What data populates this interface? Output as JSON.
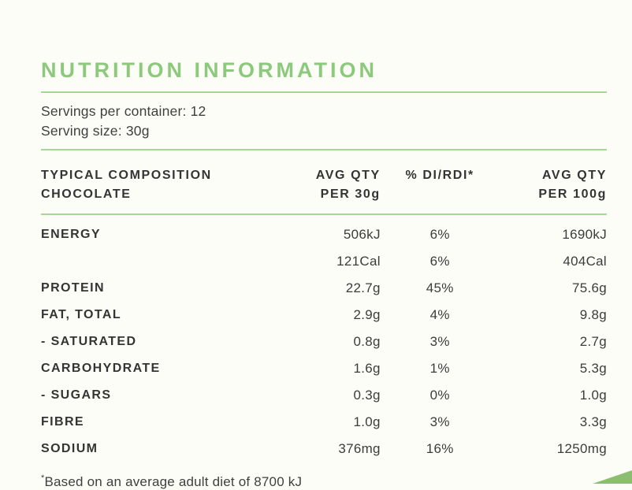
{
  "title": "NUTRITION INFORMATION",
  "serving_info": {
    "servings_per_container": "Servings per container: 12",
    "serving_size": "Serving size: 30g"
  },
  "table": {
    "headers": {
      "col1_line1": "TYPICAL COMPOSITION",
      "col1_line2": "CHOCOLATE",
      "col2_line1": "AVG QTY",
      "col2_line2": "PER 30g",
      "col3": "% DI/RDI*",
      "col4_line1": "AVG QTY",
      "col4_line2": "PER 100g"
    },
    "rows": [
      {
        "label": "ENERGY",
        "qty_30g": "506kJ",
        "di_rdi": "6%",
        "qty_100g": "1690kJ"
      },
      {
        "label": "",
        "qty_30g": "121Cal",
        "di_rdi": "6%",
        "qty_100g": "404Cal"
      },
      {
        "label": "PROTEIN",
        "qty_30g": "22.7g",
        "di_rdi": "45%",
        "qty_100g": "75.6g"
      },
      {
        "label": "FAT, TOTAL",
        "qty_30g": "2.9g",
        "di_rdi": "4%",
        "qty_100g": "9.8g"
      },
      {
        "label": "- SATURATED",
        "qty_30g": "0.8g",
        "di_rdi": "3%",
        "qty_100g": "2.7g"
      },
      {
        "label": "CARBOHYDRATE",
        "qty_30g": "1.6g",
        "di_rdi": "1%",
        "qty_100g": "5.3g"
      },
      {
        "label": "- SUGARS",
        "qty_30g": "0.3g",
        "di_rdi": "0%",
        "qty_100g": "1.0g"
      },
      {
        "label": "FIBRE",
        "qty_30g": "1.0g",
        "di_rdi": "3%",
        "qty_100g": "3.3g"
      },
      {
        "label": "SODIUM",
        "qty_30g": "376mg",
        "di_rdi": "16%",
        "qty_100g": "1250mg"
      }
    ]
  },
  "footnote": {
    "marker": "*",
    "text": "Based on an average adult diet of 8700 kJ"
  },
  "colors": {
    "accent_green": "#8DC97C",
    "divider_green": "#A8D598",
    "triangle_green": "#8CBE72",
    "text_dark": "#3C3C3C",
    "background": "#FDFDF7"
  }
}
